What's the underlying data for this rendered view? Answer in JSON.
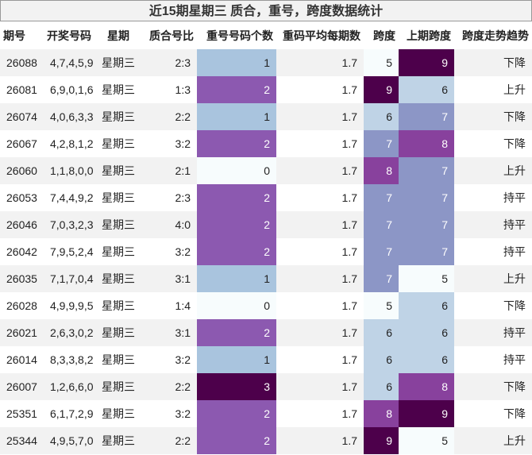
{
  "title": "近15期星期三 质合，重号，跨度数据统计",
  "table": {
    "headers": [
      "期号",
      "开奖号码",
      "星期",
      "质合号比",
      "重号号码个数",
      "重码平均每期数",
      "跨度",
      "上期跨度",
      "跨度走势趋势"
    ],
    "rows": [
      [
        "26088",
        "4,7,4,5,9",
        "星期三",
        "2:3",
        "1",
        "1.7",
        "5",
        "9",
        "下降"
      ],
      [
        "26081",
        "6,9,0,1,6",
        "星期三",
        "1:3",
        "2",
        "1.7",
        "9",
        "6",
        "上升"
      ],
      [
        "26074",
        "4,0,6,3,3",
        "星期三",
        "2:2",
        "1",
        "1.7",
        "6",
        "7",
        "下降"
      ],
      [
        "26067",
        "4,2,8,1,2",
        "星期三",
        "3:2",
        "2",
        "1.7",
        "7",
        "8",
        "下降"
      ],
      [
        "26060",
        "1,1,8,0,0",
        "星期三",
        "2:1",
        "0",
        "1.7",
        "8",
        "7",
        "上升"
      ],
      [
        "26053",
        "7,4,4,9,2",
        "星期三",
        "2:3",
        "2",
        "1.7",
        "7",
        "7",
        "持平"
      ],
      [
        "26046",
        "7,0,3,2,3",
        "星期三",
        "4:0",
        "2",
        "1.7",
        "7",
        "7",
        "持平"
      ],
      [
        "26042",
        "7,9,5,2,4",
        "星期三",
        "3:2",
        "2",
        "1.7",
        "7",
        "7",
        "持平"
      ],
      [
        "26035",
        "7,1,7,0,4",
        "星期三",
        "3:1",
        "1",
        "1.7",
        "7",
        "5",
        "上升"
      ],
      [
        "26028",
        "4,9,9,9,5",
        "星期三",
        "1:4",
        "0",
        "1.7",
        "5",
        "6",
        "下降"
      ],
      [
        "26021",
        "2,6,3,0,2",
        "星期三",
        "3:1",
        "2",
        "1.7",
        "6",
        "6",
        "持平"
      ],
      [
        "26014",
        "8,3,3,8,2",
        "星期三",
        "3:2",
        "1",
        "1.7",
        "6",
        "6",
        "持平"
      ],
      [
        "26007",
        "1,2,6,6,0",
        "星期三",
        "2:2",
        "3",
        "1.7",
        "6",
        "8",
        "下降"
      ],
      [
        "25351",
        "6,1,7,2,9",
        "星期三",
        "3:2",
        "2",
        "1.7",
        "8",
        "9",
        "下降"
      ],
      [
        "25344",
        "4,9,5,7,0",
        "星期三",
        "2:2",
        "2",
        "1.7",
        "9",
        "5",
        "上升"
      ]
    ],
    "cell_colors": {
      "repeat": {
        "0": "#f7fcfd",
        "1": "#a9c4de",
        "2": "#8c59b0",
        "3": "#4d004b"
      },
      "span": {
        "5": "#f7fcfd",
        "6": "#bfd3e6",
        "7": "#8c96c6",
        "8": "#88419d",
        "9": "#4d004b"
      }
    }
  }
}
